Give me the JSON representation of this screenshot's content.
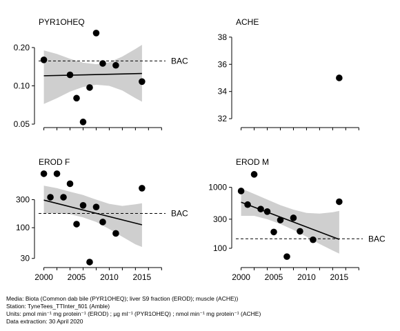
{
  "chart_data": [
    {
      "type": "scatter",
      "title": "PYR1OHEQ",
      "scale": "log",
      "ylim": [
        0.05,
        0.28
      ],
      "yticks": [
        0.05,
        0.1,
        0.2
      ],
      "ytick_labels": [
        "0.05",
        "0.10",
        "0.20"
      ],
      "xlim": [
        1999.2,
        2018.6
      ],
      "points": [
        {
          "x": 2000,
          "y": 0.16
        },
        {
          "x": 2004,
          "y": 0.122
        },
        {
          "x": 2005,
          "y": 0.08
        },
        {
          "x": 2006,
          "y": 0.052
        },
        {
          "x": 2007,
          "y": 0.097
        },
        {
          "x": 2008,
          "y": 0.26
        },
        {
          "x": 2009,
          "y": 0.15
        },
        {
          "x": 2011,
          "y": 0.145
        },
        {
          "x": 2015,
          "y": 0.108
        }
      ],
      "trend": {
        "x": [
          2000,
          2015
        ],
        "y": [
          0.12,
          0.125
        ]
      },
      "band": {
        "x": [
          2000,
          2002,
          2004,
          2006,
          2008,
          2010,
          2012,
          2014,
          2015
        ],
        "lower": [
          0.072,
          0.08,
          0.09,
          0.098,
          0.102,
          0.1,
          0.092,
          0.08,
          0.075
        ],
        "upper": [
          0.19,
          0.178,
          0.163,
          0.152,
          0.148,
          0.153,
          0.17,
          0.195,
          0.21
        ]
      },
      "bac": {
        "label": "BAC",
        "value": 0.157
      }
    },
    {
      "type": "scatter",
      "title": "ACHE",
      "scale": "linear",
      "ylim": [
        31.6,
        38.6
      ],
      "yticks": [
        32,
        34,
        36,
        38
      ],
      "ytick_labels": [
        "32",
        "34",
        "36",
        "38"
      ],
      "xlim": [
        1999.2,
        2018.6
      ],
      "points": [
        {
          "x": 2015,
          "y": 35
        }
      ]
    },
    {
      "type": "scatter",
      "title": "EROD F",
      "scale": "log",
      "ylim": [
        24,
        1000
      ],
      "yticks": [
        30,
        100,
        300
      ],
      "ytick_labels": [
        "30",
        "100",
        "300"
      ],
      "xlim": [
        1999.2,
        2018.6
      ],
      "points": [
        {
          "x": 2000,
          "y": 830
        },
        {
          "x": 2001,
          "y": 330
        },
        {
          "x": 2002,
          "y": 830
        },
        {
          "x": 2003,
          "y": 330
        },
        {
          "x": 2004,
          "y": 560
        },
        {
          "x": 2005,
          "y": 115
        },
        {
          "x": 2006,
          "y": 240
        },
        {
          "x": 2007,
          "y": 26
        },
        {
          "x": 2008,
          "y": 225
        },
        {
          "x": 2009,
          "y": 125
        },
        {
          "x": 2011,
          "y": 80
        },
        {
          "x": 2015,
          "y": 470
        }
      ],
      "trend": {
        "x": [
          2000,
          2015
        ],
        "y": [
          295,
          112
        ]
      },
      "band": {
        "x": [
          2000,
          2002,
          2004,
          2006,
          2008,
          2010,
          2012,
          2014,
          2015
        ],
        "lower": [
          175,
          175,
          170,
          150,
          125,
          95,
          70,
          52,
          47
        ],
        "upper": [
          520,
          470,
          410,
          360,
          300,
          255,
          235,
          250,
          260
        ]
      },
      "bac": {
        "label": "BAC",
        "value": 175
      }
    },
    {
      "type": "scatter",
      "title": "EROD M",
      "scale": "log",
      "ylim": [
        55,
        2000
      ],
      "yticks": [
        100,
        300,
        1000
      ],
      "ytick_labels": [
        "100",
        "300",
        "1000"
      ],
      "xlim": [
        1999.2,
        2018.6
      ],
      "xticks": [
        2000,
        2005,
        2010,
        2015
      ],
      "points": [
        {
          "x": 2000,
          "y": 870
        },
        {
          "x": 2001,
          "y": 520
        },
        {
          "x": 2002,
          "y": 1630
        },
        {
          "x": 2003,
          "y": 440
        },
        {
          "x": 2004,
          "y": 400
        },
        {
          "x": 2005,
          "y": 185
        },
        {
          "x": 2006,
          "y": 290
        },
        {
          "x": 2007,
          "y": 73
        },
        {
          "x": 2008,
          "y": 315
        },
        {
          "x": 2009,
          "y": 190
        },
        {
          "x": 2011,
          "y": 138
        },
        {
          "x": 2015,
          "y": 580
        }
      ],
      "trend": {
        "x": [
          2000,
          2015
        ],
        "y": [
          570,
          140
        ]
      },
      "band": {
        "x": [
          2000,
          2002,
          2004,
          2006,
          2008,
          2010,
          2012,
          2014,
          2015
        ],
        "lower": [
          340,
          340,
          300,
          250,
          200,
          155,
          118,
          92,
          82
        ],
        "upper": [
          960,
          780,
          630,
          510,
          430,
          380,
          370,
          390,
          410
        ]
      },
      "bac": {
        "label": "BAC",
        "value": 143
      }
    }
  ],
  "x_axis": {
    "ticks": [
      2000,
      2005,
      2010,
      2015
    ],
    "tick_labels": [
      "2000",
      "2005",
      "2010",
      "2015"
    ]
  },
  "footer": {
    "media": "Media: Biota (Common dab bile (PYR1OHEQ); liver S9 fraction (EROD); muscle (ACHE))",
    "station": "Station: TyneTees_TTInter_fi01 (Amble)",
    "units": "Units:  pmol min⁻¹ mg protein⁻¹ (EROD) ;  µg ml⁻¹ (PYR1OHEQ) ;  nmol min⁻¹ mg protein⁻¹ (ACHE)",
    "extraction": "Data extraction: 30 April 2020"
  }
}
